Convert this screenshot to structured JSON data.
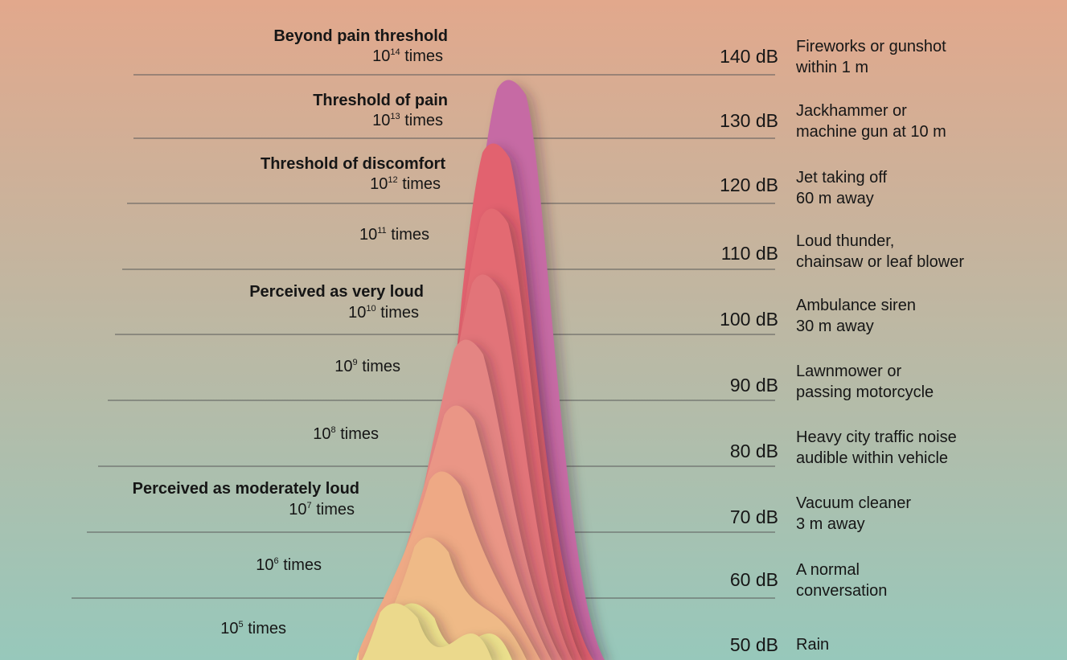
{
  "title": "",
  "levels": [
    {
      "db": "140 dB",
      "category": "Beyond pain threshold",
      "exp": "14",
      "times": "times",
      "source_lines": [
        "Fireworks or gunshot",
        "within 1 m"
      ],
      "color": "#c66aa4"
    },
    {
      "db": "130 dB",
      "category": "Threshold of pain",
      "exp": "13",
      "times": "times",
      "source_lines": [
        "Jackhammer or",
        "machine gun at 10 m"
      ],
      "color": "#e2626f"
    },
    {
      "db": "120 dB",
      "category": "Threshold of discomfort",
      "exp": "12",
      "times": "times",
      "source_lines": [
        "Jet taking off",
        "60 m away"
      ],
      "color": "#e36a72"
    },
    {
      "db": "110 dB",
      "category": "",
      "exp": "11",
      "times": "times",
      "source_lines": [
        "Loud thunder,",
        "chainsaw or leaf blower"
      ],
      "color": "#e27479"
    },
    {
      "db": "100 dB",
      "category": "Perceived as very loud",
      "exp": "10",
      "times": "times",
      "source_lines": [
        "Ambulance siren",
        "30 m away"
      ],
      "color": "#e48583"
    },
    {
      "db": "90 dB",
      "category": "",
      "exp": "9",
      "times": "times",
      "source_lines": [
        "Lawnmower or",
        "passing motorcycle"
      ],
      "color": "#ea9686"
    },
    {
      "db": "80 dB",
      "category": "",
      "exp": "8",
      "times": "times",
      "source_lines": [
        "Heavy city traffic noise",
        "audible within vehicle"
      ],
      "color": "#eea985"
    },
    {
      "db": "70 dB",
      "category": "Perceived as moderately loud",
      "exp": "7",
      "times": "times",
      "source_lines": [
        "Vacuum cleaner",
        "3 m away"
      ],
      "color": "#efba87"
    },
    {
      "db": "60 dB",
      "category": "",
      "exp": "6",
      "times": "times",
      "source_lines": [
        "A normal",
        "conversation"
      ],
      "color": "#ebdf8c"
    },
    {
      "db": "50 dB",
      "category": "",
      "exp": "5",
      "times": "times",
      "source_lines": [
        "Rain"
      ],
      "color": "#ebd98c"
    }
  ],
  "colors": {
    "bg_top": "#e2a88c",
    "bg_bottom": "#97c8bb",
    "rule": "#5a5a5a",
    "text": "#161616"
  }
}
